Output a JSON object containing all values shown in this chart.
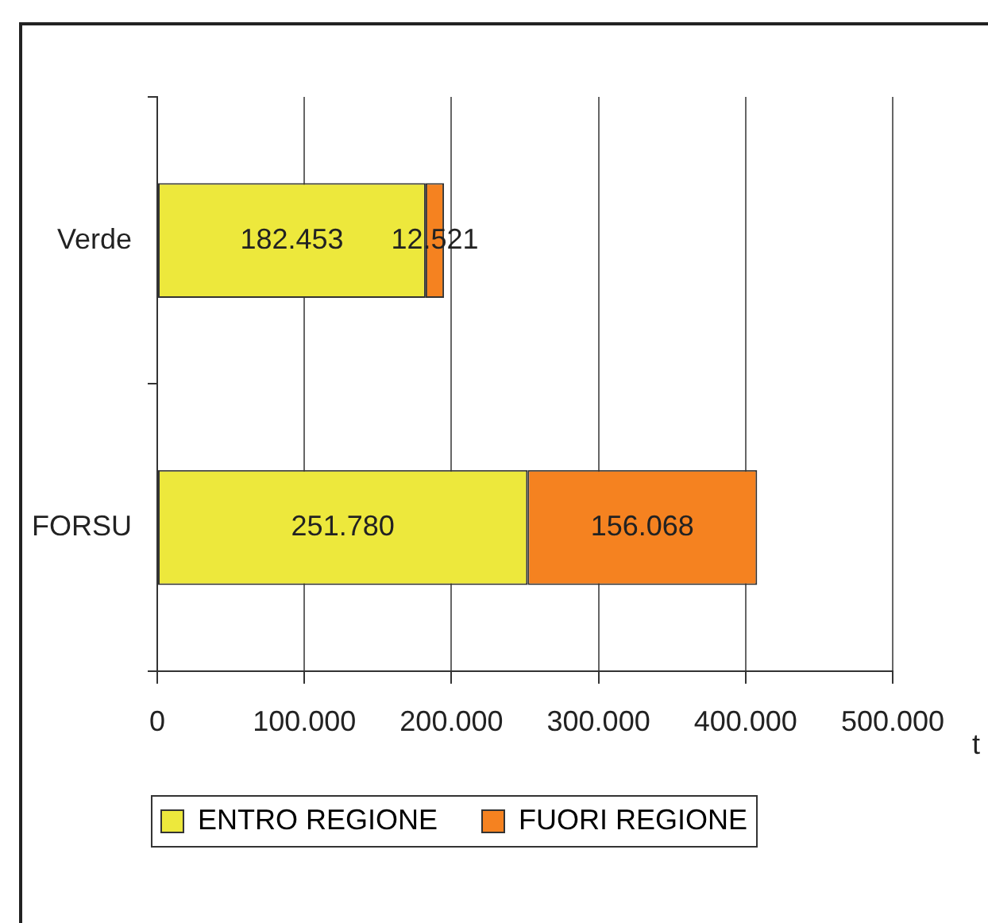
{
  "chart_data": {
    "type": "bar",
    "orientation": "horizontal",
    "stacked": true,
    "categories": [
      "Verde",
      "FORSU"
    ],
    "series": [
      {
        "name": "ENTRO REGIONE",
        "color": "#ede83c",
        "values": [
          182453,
          251780
        ],
        "value_labels": [
          "182.453",
          "251.780"
        ]
      },
      {
        "name": "FUORI REGIONE",
        "color": "#f58220",
        "values": [
          12521,
          156068
        ],
        "value_labels": [
          "12.521",
          "156.068"
        ]
      }
    ],
    "xlabel": "t",
    "xlim": [
      0,
      500000
    ],
    "xticks": [
      0,
      {
        "value": 100000,
        "label": "100.000"
      },
      {
        "value": 200000,
        "label": "200.000"
      },
      {
        "value": 300000,
        "label": "300.000"
      },
      {
        "value": 400000,
        "label": "400.000"
      },
      {
        "value": 500000,
        "label": "500.000"
      }
    ],
    "grid": "x",
    "legend": "bottom"
  }
}
